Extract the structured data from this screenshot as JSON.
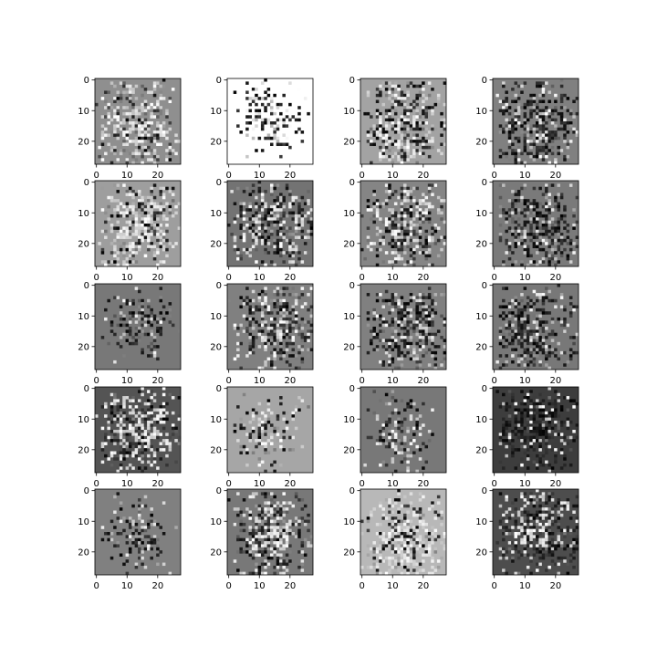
{
  "figure": {
    "background": "#ffffff"
  },
  "chart_data": {
    "type": "heatmap",
    "layout": {
      "rows": 5,
      "cols": 4
    },
    "image_size": [
      28,
      28
    ],
    "colormap": "gray",
    "xticks": [
      0,
      10,
      20
    ],
    "yticks": [
      0,
      10,
      20
    ],
    "xlim": [
      -0.5,
      27.5
    ],
    "ylim": [
      27.5,
      -0.5
    ],
    "grid": false,
    "legend": "none",
    "panels": [
      {
        "id": 1,
        "bg": 0.56,
        "style": "noisy-light"
      },
      {
        "id": 2,
        "bg": 1.0,
        "style": "sparse-dark"
      },
      {
        "id": 3,
        "bg": 0.64,
        "style": "noisy-mixed"
      },
      {
        "id": 4,
        "bg": 0.5,
        "style": "noisy-dark"
      },
      {
        "id": 5,
        "bg": 0.62,
        "style": "noisy-light"
      },
      {
        "id": 6,
        "bg": 0.45,
        "style": "noisy-mixed"
      },
      {
        "id": 7,
        "bg": 0.52,
        "style": "noisy-mixed"
      },
      {
        "id": 8,
        "bg": 0.48,
        "style": "noisy-dark"
      },
      {
        "id": 9,
        "bg": 0.47,
        "style": "sparse-dark"
      },
      {
        "id": 10,
        "bg": 0.5,
        "style": "noisy-mixed"
      },
      {
        "id": 11,
        "bg": 0.5,
        "style": "noisy-dark"
      },
      {
        "id": 12,
        "bg": 0.47,
        "style": "noisy-dark"
      },
      {
        "id": 13,
        "bg": 0.33,
        "style": "noisy-light"
      },
      {
        "id": 14,
        "bg": 0.65,
        "style": "sparse-mixed"
      },
      {
        "id": 15,
        "bg": 0.47,
        "style": "sparse-mixed"
      },
      {
        "id": 16,
        "bg": 0.24,
        "style": "noisy-dark"
      },
      {
        "id": 17,
        "bg": 0.5,
        "style": "sparse-dark"
      },
      {
        "id": 18,
        "bg": 0.47,
        "style": "noisy-mixed"
      },
      {
        "id": 19,
        "bg": 0.72,
        "style": "noisy-light"
      },
      {
        "id": 20,
        "bg": 0.3,
        "style": "noisy-mixed"
      }
    ]
  }
}
